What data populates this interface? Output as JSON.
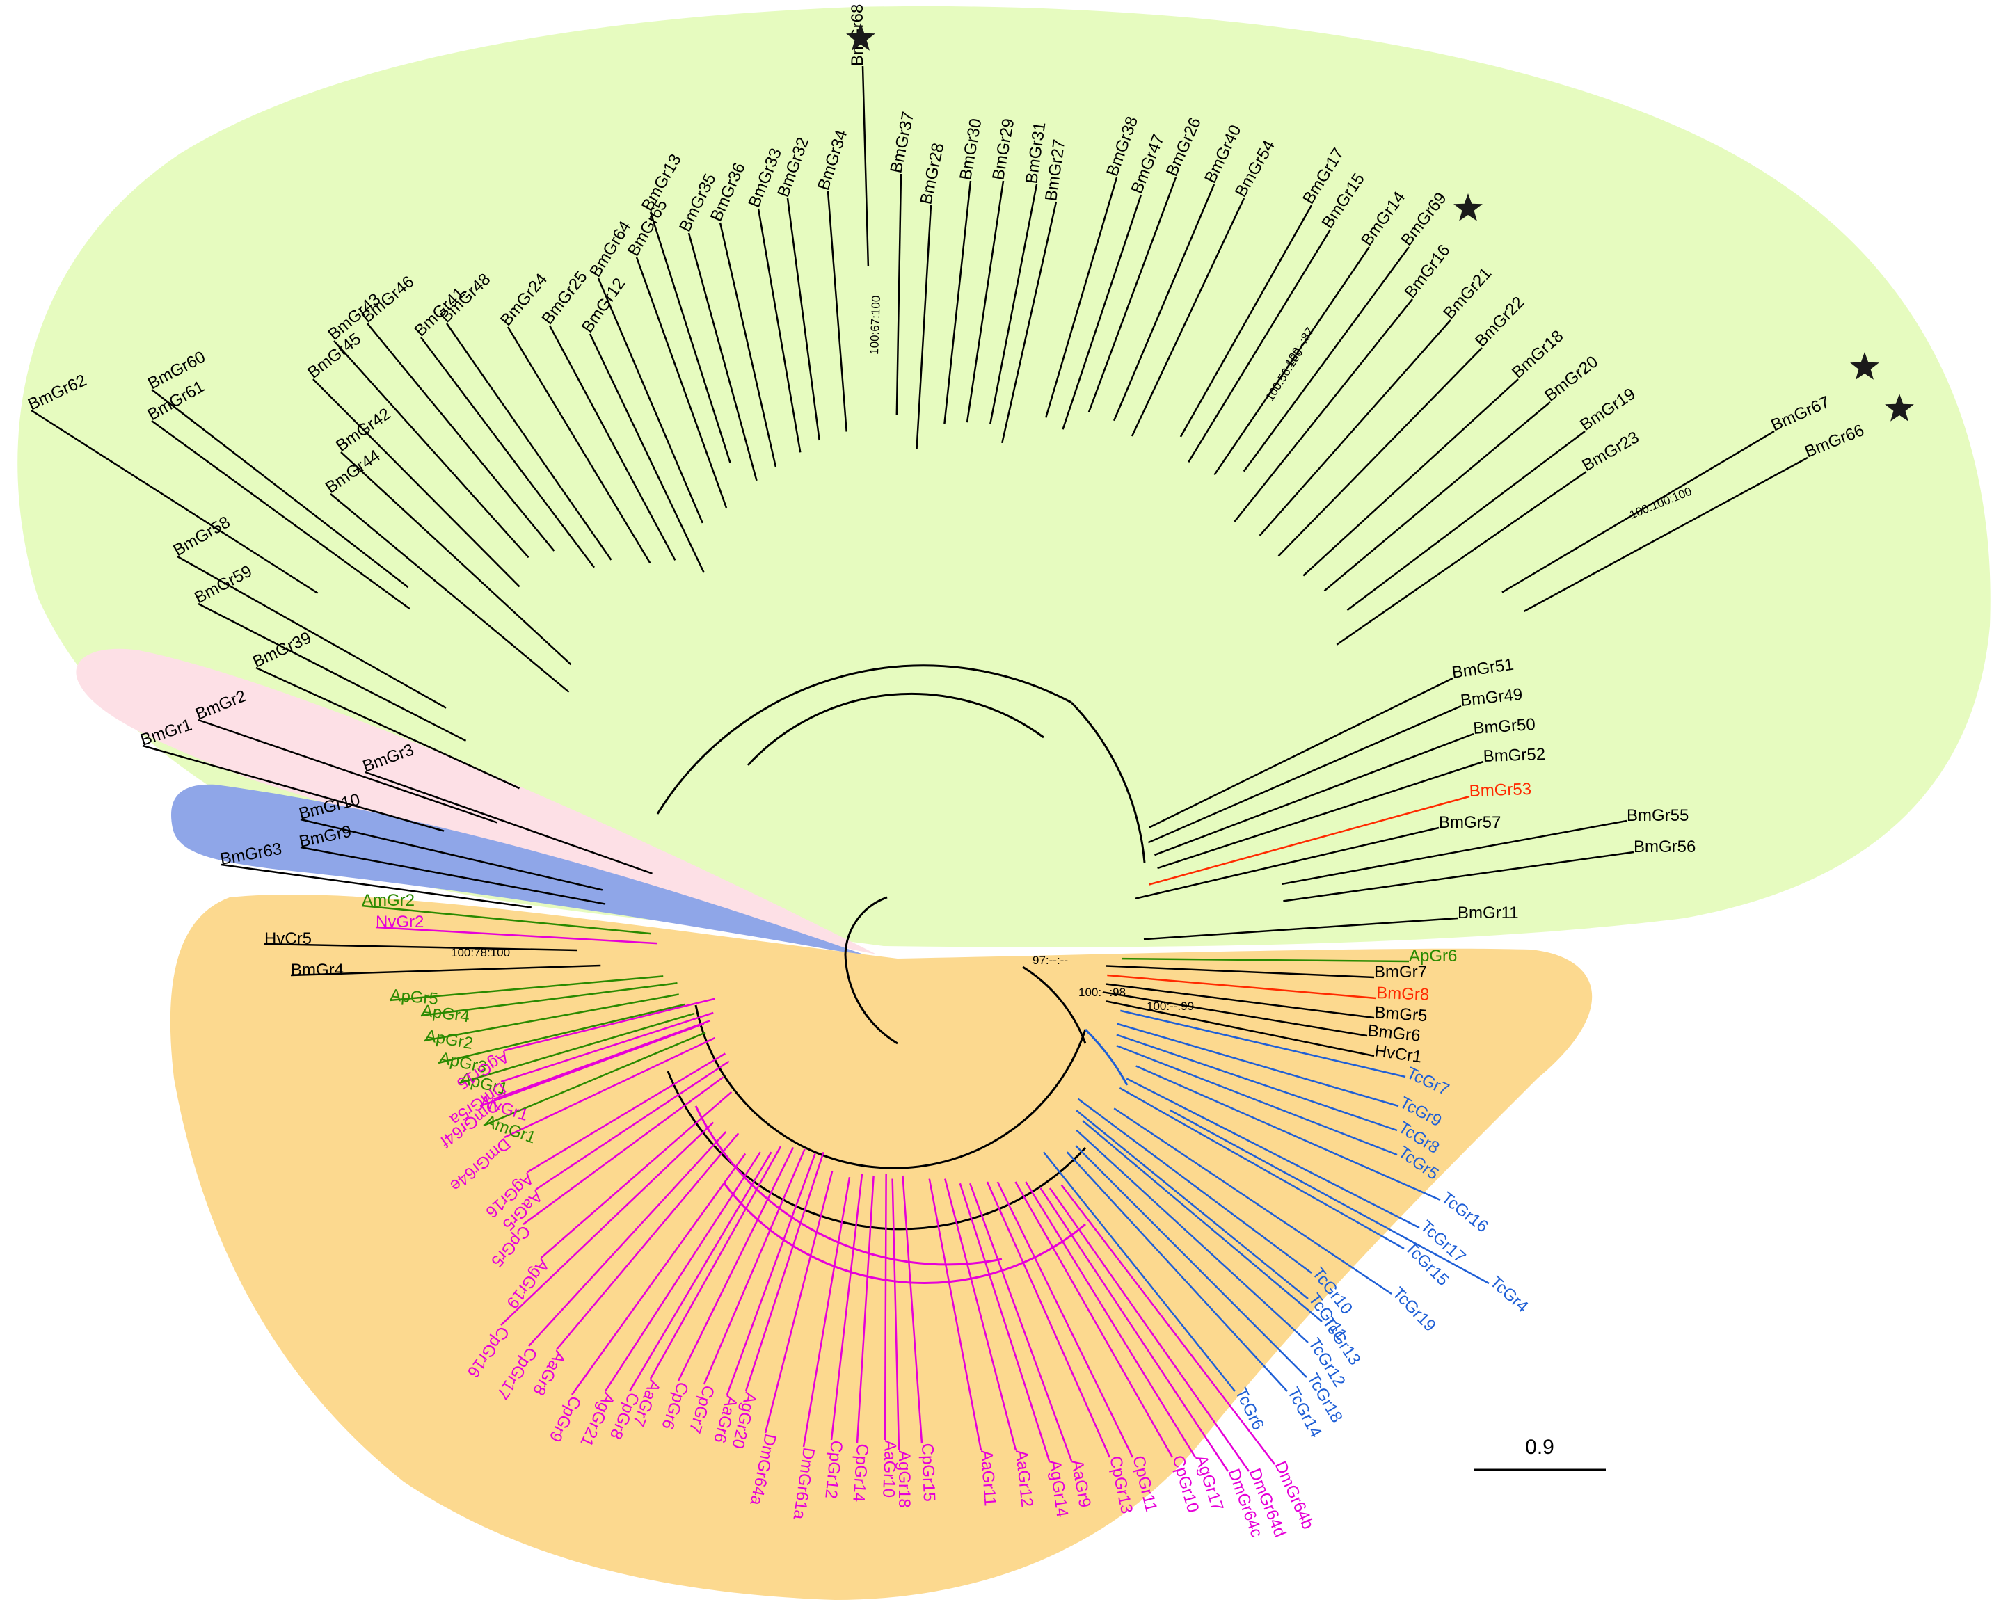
{
  "colors": {
    "green_clade": "#e6fbbf",
    "pink_clade": "#fde0e6",
    "blue_clade": "#8fa6e8",
    "orange_clade": "#fcd98f",
    "black": "#000000",
    "red": "#ff2a00",
    "green": "#2a8a00",
    "magenta": "#e600d8",
    "blue": "#1f5fd6"
  },
  "scale_bar": {
    "label": "0.9"
  },
  "supports": {
    "s1": "100:67:100",
    "s2": "100:56:100",
    "s3": "100:-:87",
    "s4": "100:100:100",
    "s5": "100:78:100",
    "s6": "97:--:--",
    "s7": "100:--:98",
    "s8": "100:--:99"
  },
  "stars": [
    "star-bmgr68",
    "star-bmgr69",
    "star-bmgr67",
    "star-bmgr66"
  ],
  "leaves": [
    {
      "label": "BmGr62",
      "color": "black"
    },
    {
      "label": "BmGr60",
      "color": "black"
    },
    {
      "label": "BmGr61",
      "color": "black"
    },
    {
      "label": "BmGr58",
      "color": "black"
    },
    {
      "label": "BmGr59",
      "color": "black"
    },
    {
      "label": "BmGr39",
      "color": "black"
    },
    {
      "label": "BmGr42",
      "color": "black"
    },
    {
      "label": "BmGr44",
      "color": "black"
    },
    {
      "label": "BmGr43",
      "color": "black"
    },
    {
      "label": "BmGr45",
      "color": "black"
    },
    {
      "label": "BmGr46",
      "color": "black"
    },
    {
      "label": "BmGr48",
      "color": "black"
    },
    {
      "label": "BmGr41",
      "color": "black"
    },
    {
      "label": "BmGr24",
      "color": "black"
    },
    {
      "label": "BmGr25",
      "color": "black"
    },
    {
      "label": "BmGr12",
      "color": "black"
    },
    {
      "label": "BmGr64",
      "color": "black"
    },
    {
      "label": "BmGr65",
      "color": "black"
    },
    {
      "label": "BmGr13",
      "color": "black"
    },
    {
      "label": "BmGr35",
      "color": "black"
    },
    {
      "label": "BmGr36",
      "color": "black"
    },
    {
      "label": "BmGr33",
      "color": "black"
    },
    {
      "label": "BmGr32",
      "color": "black"
    },
    {
      "label": "BmGr34",
      "color": "black"
    },
    {
      "label": "BmGr68",
      "color": "black"
    },
    {
      "label": "BmGr37",
      "color": "black"
    },
    {
      "label": "BmGr28",
      "color": "black"
    },
    {
      "label": "BmGr30",
      "color": "black"
    },
    {
      "label": "BmGr29",
      "color": "black"
    },
    {
      "label": "BmGr31",
      "color": "black"
    },
    {
      "label": "BmGr27",
      "color": "black"
    },
    {
      "label": "BmGr38",
      "color": "black"
    },
    {
      "label": "BmGr47",
      "color": "black"
    },
    {
      "label": "BmGr26",
      "color": "black"
    },
    {
      "label": "BmGr40",
      "color": "black"
    },
    {
      "label": "BmGr54",
      "color": "black"
    },
    {
      "label": "BmGr17",
      "color": "black"
    },
    {
      "label": "BmGr15",
      "color": "black"
    },
    {
      "label": "BmGr14",
      "color": "black"
    },
    {
      "label": "BmGr69",
      "color": "black"
    },
    {
      "label": "BmGr16",
      "color": "black"
    },
    {
      "label": "BmGr21",
      "color": "black"
    },
    {
      "label": "BmGr22",
      "color": "black"
    },
    {
      "label": "BmGr18",
      "color": "black"
    },
    {
      "label": "BmGr20",
      "color": "black"
    },
    {
      "label": "BmGr19",
      "color": "black"
    },
    {
      "label": "BmGr23",
      "color": "black"
    },
    {
      "label": "BmGr67",
      "color": "black"
    },
    {
      "label": "BmGr66",
      "color": "black"
    },
    {
      "label": "BmGr51",
      "color": "black"
    },
    {
      "label": "BmGr49",
      "color": "black"
    },
    {
      "label": "BmGr50",
      "color": "black"
    },
    {
      "label": "BmGr52",
      "color": "black"
    },
    {
      "label": "BmGr53",
      "color": "red"
    },
    {
      "label": "BmGr57",
      "color": "black"
    },
    {
      "label": "BmGr55",
      "color": "black"
    },
    {
      "label": "BmGr56",
      "color": "black"
    },
    {
      "label": "BmGr11",
      "color": "black"
    },
    {
      "label": "BmGr2",
      "color": "black"
    },
    {
      "label": "BmGr1",
      "color": "black"
    },
    {
      "label": "BmGr3",
      "color": "black"
    },
    {
      "label": "BmGr10",
      "color": "black"
    },
    {
      "label": "BmGr9",
      "color": "black"
    },
    {
      "label": "BmGr63",
      "color": "black"
    },
    {
      "label": "AmGr2",
      "color": "green"
    },
    {
      "label": "NvGr2",
      "color": "magenta"
    },
    {
      "label": "HvCr5",
      "color": "black"
    },
    {
      "label": "BmGr4",
      "color": "black"
    },
    {
      "label": "ApGr5",
      "color": "green"
    },
    {
      "label": "ApGr4",
      "color": "green"
    },
    {
      "label": "ApGr2",
      "color": "green"
    },
    {
      "label": "ApGr3",
      "color": "green"
    },
    {
      "label": "ApGr1",
      "color": "green"
    },
    {
      "label": "NvGr1",
      "color": "magenta"
    },
    {
      "label": "AmGr1",
      "color": "green"
    },
    {
      "label": "ApGr6",
      "color": "green"
    },
    {
      "label": "BmGr7",
      "color": "black"
    },
    {
      "label": "BmGr8",
      "color": "red"
    },
    {
      "label": "BmGr5",
      "color": "black"
    },
    {
      "label": "BmGr6",
      "color": "black"
    },
    {
      "label": "HvCr1",
      "color": "black"
    },
    {
      "label": "TcGr7",
      "color": "blue"
    },
    {
      "label": "TcGr9",
      "color": "blue"
    },
    {
      "label": "TcGr8",
      "color": "blue"
    },
    {
      "label": "TcGr5",
      "color": "blue"
    },
    {
      "label": "TcGr16",
      "color": "blue"
    },
    {
      "label": "TcGr17",
      "color": "blue"
    },
    {
      "label": "TcGr15",
      "color": "blue"
    },
    {
      "label": "TcGr4",
      "color": "blue"
    },
    {
      "label": "TcGr19",
      "color": "blue"
    },
    {
      "label": "TcGr10",
      "color": "blue"
    },
    {
      "label": "TcGr11",
      "color": "blue"
    },
    {
      "label": "TcGr13",
      "color": "blue"
    },
    {
      "label": "TcGr12",
      "color": "blue"
    },
    {
      "label": "TcGr18",
      "color": "blue"
    },
    {
      "label": "TcGr14",
      "color": "blue"
    },
    {
      "label": "TcGr6",
      "color": "blue"
    },
    {
      "label": "DmGr64b",
      "color": "magenta"
    },
    {
      "label": "DmGr64d",
      "color": "magenta"
    },
    {
      "label": "DmGr64c",
      "color": "magenta"
    },
    {
      "label": "AgGr17",
      "color": "magenta"
    },
    {
      "label": "CpGr10",
      "color": "magenta"
    },
    {
      "label": "CpGr11",
      "color": "magenta"
    },
    {
      "label": "CpGr13",
      "color": "magenta"
    },
    {
      "label": "AaGr9",
      "color": "magenta"
    },
    {
      "label": "AgGr14",
      "color": "magenta"
    },
    {
      "label": "AaGr12",
      "color": "magenta"
    },
    {
      "label": "AaGr11",
      "color": "magenta"
    },
    {
      "label": "CpGr15",
      "color": "magenta"
    },
    {
      "label": "AgGr18",
      "color": "magenta"
    },
    {
      "label": "AaGr10",
      "color": "magenta"
    },
    {
      "label": "CpGr14",
      "color": "magenta"
    },
    {
      "label": "CpGr12",
      "color": "magenta"
    },
    {
      "label": "DmGr61a",
      "color": "magenta"
    },
    {
      "label": "DmGr64a",
      "color": "magenta"
    },
    {
      "label": "AgGr20",
      "color": "magenta"
    },
    {
      "label": "AaGr6",
      "color": "magenta"
    },
    {
      "label": "CpGr7",
      "color": "magenta"
    },
    {
      "label": "CpGr6",
      "color": "magenta"
    },
    {
      "label": "AaGr7",
      "color": "magenta"
    },
    {
      "label": "CpGr8",
      "color": "magenta"
    },
    {
      "label": "AgGr21",
      "color": "magenta"
    },
    {
      "label": "CpGr9",
      "color": "magenta"
    },
    {
      "label": "AaGr8",
      "color": "magenta"
    },
    {
      "label": "CpGr17",
      "color": "magenta"
    },
    {
      "label": "CpGr16",
      "color": "magenta"
    },
    {
      "label": "AgGr19",
      "color": "magenta"
    },
    {
      "label": "CpGr5",
      "color": "magenta"
    },
    {
      "label": "AaGr5",
      "color": "magenta"
    },
    {
      "label": "AgGr16",
      "color": "magenta"
    },
    {
      "label": "DmGr64e",
      "color": "magenta"
    },
    {
      "label": "DmGr64f",
      "color": "magenta"
    },
    {
      "label": "DmGr5a",
      "color": "magenta"
    },
    {
      "label": "AgGr15",
      "color": "magenta"
    },
    {
      "label": "AaGr4",
      "color": "magenta"
    },
    {
      "label": "CpGr4",
      "color": "magenta"
    }
  ]
}
